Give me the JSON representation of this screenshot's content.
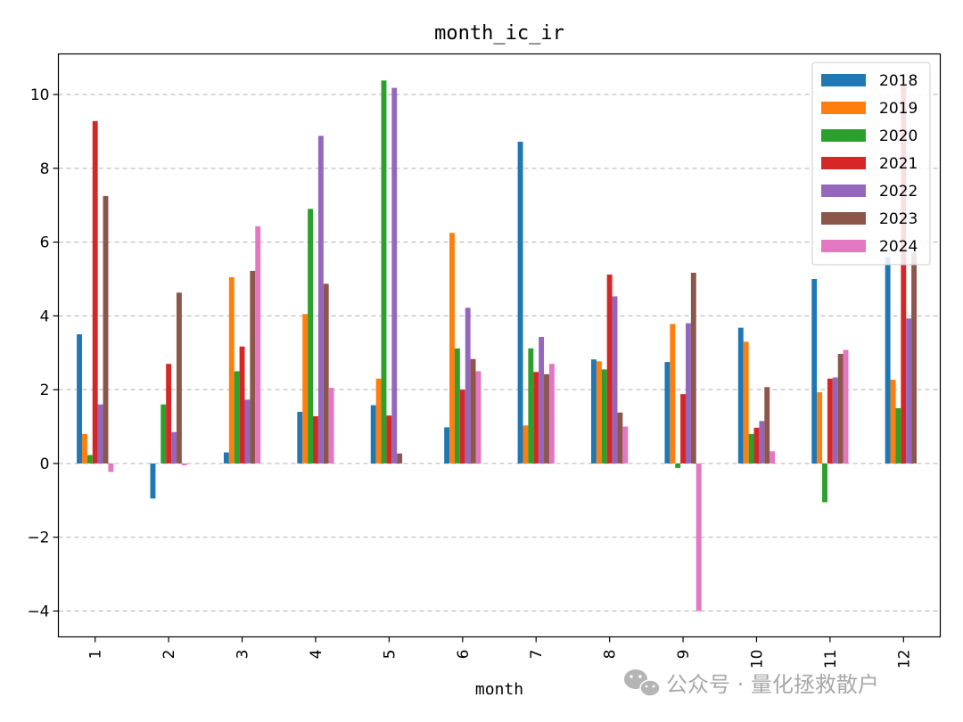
{
  "chart_data": {
    "type": "bar",
    "title": "month_ic_ir",
    "xlabel": "month",
    "ylabel": "",
    "ylim": [
      -4.7,
      11.1
    ],
    "yticks": [
      -4,
      -2,
      0,
      2,
      4,
      6,
      8,
      10
    ],
    "ytick_labels": [
      "−4",
      "−2",
      "0",
      "2",
      "4",
      "6",
      "8",
      "10"
    ],
    "grid": "y-dashed",
    "legend_position": "top-right",
    "categories": [
      "1",
      "2",
      "3",
      "4",
      "5",
      "6",
      "7",
      "8",
      "9",
      "10",
      "11",
      "12"
    ],
    "series": [
      {
        "name": "2018",
        "color": "#1f77b4",
        "values": [
          3.5,
          -0.95,
          0.3,
          1.4,
          1.58,
          0.98,
          8.72,
          2.82,
          2.75,
          3.68,
          5.0,
          5.6
        ]
      },
      {
        "name": "2019",
        "color": "#ff7f0e",
        "values": [
          0.8,
          0.0,
          5.05,
          4.05,
          2.3,
          6.25,
          1.03,
          2.77,
          3.78,
          3.3,
          1.93,
          2.27
        ]
      },
      {
        "name": "2020",
        "color": "#2ca02c",
        "values": [
          0.23,
          1.6,
          2.5,
          6.9,
          10.38,
          3.12,
          3.12,
          2.55,
          -0.12,
          0.8,
          -1.05,
          1.5
        ]
      },
      {
        "name": "2021",
        "color": "#d62728",
        "values": [
          9.28,
          2.7,
          3.17,
          1.28,
          1.3,
          2.0,
          2.48,
          5.12,
          1.88,
          0.97,
          2.3,
          10.25
        ]
      },
      {
        "name": "2022",
        "color": "#9467bd",
        "values": [
          1.6,
          0.85,
          1.73,
          8.88,
          10.18,
          4.22,
          3.43,
          4.53,
          3.8,
          1.15,
          2.33,
          3.93
        ]
      },
      {
        "name": "2023",
        "color": "#8c564b",
        "values": [
          7.25,
          4.63,
          5.22,
          4.87,
          0.27,
          2.83,
          2.42,
          1.38,
          5.17,
          2.07,
          2.97,
          5.72
        ]
      },
      {
        "name": "2024",
        "color": "#e377c2",
        "values": [
          -0.23,
          -0.05,
          6.43,
          2.05,
          0.0,
          2.5,
          2.7,
          1.0,
          -4.0,
          0.33,
          3.08,
          0.0
        ]
      }
    ]
  },
  "watermark": {
    "text": "公众号 · 量化拯救散户",
    "icon": "wechat-icon"
  }
}
